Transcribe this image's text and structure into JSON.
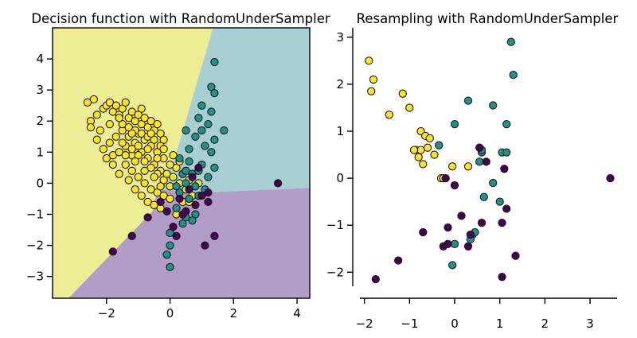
{
  "chart_data": [
    {
      "type": "scatter",
      "title": "Decision function with RandomUnderSampler",
      "xlabel": "",
      "ylabel": "",
      "xlim": [
        -3.7,
        4.4
      ],
      "ylim": [
        -3.7,
        5.0
      ],
      "x_ticks": [
        -2,
        0,
        2,
        4
      ],
      "x_tick_labels": [
        "−2",
        "0",
        "2",
        "4"
      ],
      "y_ticks": [
        -3,
        -2,
        -1,
        0,
        1,
        2,
        3,
        4
      ],
      "y_tick_labels": [
        "−3",
        "−2",
        "−1",
        "0",
        "1",
        "2",
        "3",
        "4"
      ],
      "grid": false,
      "frame": "full",
      "regions": [
        {
          "class": "yellow",
          "color": "#eded95",
          "polygon": [
            [
              -3.7,
              5.0
            ],
            [
              1.35,
              5.0
            ],
            [
              0.15,
              0.8
            ],
            [
              -0.4,
              -0.2
            ],
            [
              -0.55,
              -0.9
            ],
            [
              -3.2,
              -3.7
            ],
            [
              -3.7,
              -3.7
            ]
          ]
        },
        {
          "class": "teal",
          "color": "#a8cfd1",
          "polygon": [
            [
              1.35,
              5.0
            ],
            [
              4.4,
              5.0
            ],
            [
              4.4,
              -0.15
            ],
            [
              1.0,
              -0.3
            ],
            [
              -0.4,
              -0.2
            ],
            [
              0.15,
              0.8
            ]
          ]
        },
        {
          "class": "purple",
          "color": "#b19dc5",
          "polygon": [
            [
              -3.2,
              -3.7
            ],
            [
              4.4,
              -3.7
            ],
            [
              4.4,
              -0.15
            ],
            [
              1.0,
              -0.3
            ],
            [
              -0.4,
              -0.2
            ],
            [
              -0.55,
              -0.9
            ]
          ]
        }
      ],
      "series": [
        {
          "color": "#fde725",
          "points": [
            [
              -2.6,
              2.6
            ],
            [
              -2.4,
              2.7
            ],
            [
              -2.3,
              2.2
            ],
            [
              -2.5,
              2.0
            ],
            [
              -2.2,
              1.7
            ],
            [
              -2.1,
              2.4
            ],
            [
              -2.0,
              2.5
            ],
            [
              -1.9,
              2.6
            ],
            [
              -1.8,
              2.3
            ],
            [
              -1.7,
              2.5
            ],
            [
              -1.6,
              2.2
            ],
            [
              -1.5,
              2.4
            ],
            [
              -1.4,
              2.6
            ],
            [
              -1.3,
              2.1
            ],
            [
              -1.2,
              2.3
            ],
            [
              -1.1,
              2.0
            ],
            [
              -1.0,
              2.2
            ],
            [
              -0.9,
              1.9
            ],
            [
              -0.8,
              2.1
            ],
            [
              -0.7,
              1.8
            ],
            [
              -0.6,
              2.0
            ],
            [
              -0.5,
              1.7
            ],
            [
              -0.4,
              1.9
            ],
            [
              -0.3,
              1.6
            ],
            [
              -0.2,
              1.4
            ],
            [
              -2.3,
              1.4
            ],
            [
              -2.1,
              1.1
            ],
            [
              -1.9,
              1.3
            ],
            [
              -1.8,
              0.9
            ],
            [
              -1.7,
              1.5
            ],
            [
              -1.6,
              1.0
            ],
            [
              -1.5,
              1.7
            ],
            [
              -1.4,
              1.2
            ],
            [
              -1.3,
              1.5
            ],
            [
              -1.2,
              0.9
            ],
            [
              -1.1,
              1.3
            ],
            [
              -1.0,
              1.6
            ],
            [
              -0.9,
              1.0
            ],
            [
              -0.8,
              1.4
            ],
            [
              -0.7,
              0.8
            ],
            [
              -0.6,
              1.2
            ],
            [
              -0.5,
              0.6
            ],
            [
              -0.4,
              1.0
            ],
            [
              -0.3,
              0.4
            ],
            [
              -0.2,
              0.8
            ],
            [
              -0.1,
              0.3
            ],
            [
              0.0,
              0.6
            ],
            [
              0.1,
              0.2
            ],
            [
              0.2,
              0.5
            ],
            [
              0.3,
              0.0
            ],
            [
              0.4,
              0.3
            ],
            [
              0.5,
              -0.2
            ],
            [
              0.6,
              0.1
            ],
            [
              0.7,
              -0.4
            ],
            [
              0.8,
              -0.1
            ],
            [
              -1.6,
              0.3
            ],
            [
              -1.4,
              0.6
            ],
            [
              -1.3,
              0.1
            ],
            [
              -1.2,
              0.4
            ],
            [
              -1.1,
              -0.2
            ],
            [
              -1.0,
              0.2
            ],
            [
              -0.9,
              -0.4
            ],
            [
              -0.8,
              0.0
            ],
            [
              -0.7,
              -0.6
            ],
            [
              -0.6,
              -0.2
            ],
            [
              -0.5,
              -0.7
            ],
            [
              -0.4,
              -0.3
            ],
            [
              -0.3,
              -0.8
            ],
            [
              -0.2,
              -0.4
            ],
            [
              -0.1,
              -0.9
            ],
            [
              0.0,
              -0.5
            ],
            [
              0.2,
              -1.0
            ],
            [
              0.4,
              -0.6
            ],
            [
              -1.5,
              1.9
            ],
            [
              -1.3,
              1.8
            ],
            [
              -1.1,
              1.7
            ],
            [
              -0.9,
              1.6
            ],
            [
              -0.7,
              1.5
            ],
            [
              -0.5,
              1.4
            ],
            [
              -0.3,
              1.2
            ],
            [
              -1.2,
              1.1
            ],
            [
              -1.0,
              0.9
            ],
            [
              -0.8,
              0.7
            ],
            [
              -0.6,
              0.5
            ],
            [
              -0.4,
              0.3
            ],
            [
              -0.2,
              0.1
            ],
            [
              0.0,
              -0.1
            ],
            [
              -2.5,
              1.8
            ],
            [
              -2.0,
              0.8
            ],
            [
              -1.8,
              0.6
            ],
            [
              -0.9,
              2.4
            ],
            [
              -0.6,
              1.6
            ],
            [
              -0.2,
              1.1
            ],
            [
              0.1,
              0.9
            ],
            [
              0.3,
              0.7
            ],
            [
              0.5,
              0.4
            ],
            [
              0.7,
              0.2
            ],
            [
              0.9,
              0.0
            ],
            [
              0.6,
              -0.6
            ],
            [
              -1.9,
              1.9
            ],
            [
              -1.5,
              1.3
            ],
            [
              -1.0,
              1.2
            ],
            [
              -0.7,
              1.1
            ],
            [
              -0.4,
              0.8
            ],
            [
              -1.4,
              0.9
            ],
            [
              -1.1,
              0.7
            ],
            [
              -0.8,
              0.4
            ],
            [
              -0.5,
              0.2
            ],
            [
              -0.3,
              -0.1
            ],
            [
              -1.6,
              2.1
            ],
            [
              -1.2,
              1.6
            ]
          ]
        },
        {
          "color": "#21918c",
          "points": [
            [
              1.4,
              3.9
            ],
            [
              1.3,
              3.1
            ],
            [
              1.4,
              2.9
            ],
            [
              1.3,
              2.3
            ],
            [
              1.0,
              2.5
            ],
            [
              0.9,
              2.1
            ],
            [
              1.2,
              1.9
            ],
            [
              1.7,
              1.7
            ],
            [
              0.5,
              1.7
            ],
            [
              0.8,
              1.5
            ],
            [
              0.6,
              1.1
            ],
            [
              1.1,
              1.2
            ],
            [
              1.3,
              1.0
            ],
            [
              0.3,
              0.8
            ],
            [
              0.6,
              0.7
            ],
            [
              1.0,
              0.6
            ],
            [
              1.4,
              0.5
            ],
            [
              0.4,
              0.3
            ],
            [
              0.7,
              0.3
            ],
            [
              0.9,
              0.4
            ],
            [
              1.2,
              0.2
            ],
            [
              0.5,
              0.0
            ],
            [
              0.8,
              -0.1
            ],
            [
              1.1,
              -0.2
            ],
            [
              0.3,
              -0.3
            ],
            [
              0.6,
              -0.5
            ],
            [
              0.9,
              -0.4
            ],
            [
              0.2,
              -0.8
            ],
            [
              0.5,
              -1.1
            ],
            [
              0.8,
              -1.0
            ],
            [
              0.0,
              -1.6
            ],
            [
              -0.1,
              -2.3
            ],
            [
              0.0,
              -2.7
            ],
            [
              0.0,
              -2.0
            ],
            [
              0.4,
              -1.3
            ],
            [
              0.7,
              -1.2
            ],
            [
              0.2,
              -0.1
            ],
            [
              0.5,
              0.4
            ],
            [
              1.0,
              1.7
            ],
            [
              1.4,
              1.4
            ]
          ]
        },
        {
          "color": "#440154",
          "points": [
            [
              3.4,
              0.0
            ],
            [
              -1.8,
              -2.2
            ],
            [
              -1.2,
              -1.7
            ],
            [
              -0.7,
              -1.1
            ],
            [
              1.1,
              -2.0
            ],
            [
              1.4,
              -1.7
            ],
            [
              1.2,
              -0.6
            ],
            [
              -0.1,
              -0.9
            ],
            [
              0.1,
              -1.4
            ],
            [
              0.3,
              -0.5
            ],
            [
              0.6,
              -0.2
            ],
            [
              0.8,
              -0.7
            ],
            [
              1.0,
              -0.4
            ],
            [
              -0.3,
              -0.6
            ],
            [
              0.4,
              -1.0
            ],
            [
              0.9,
              0.5
            ],
            [
              0.2,
              -1.7
            ],
            [
              0.5,
              -0.9
            ],
            [
              1.2,
              -0.3
            ],
            [
              0.7,
              0.2
            ]
          ]
        }
      ]
    },
    {
      "type": "scatter",
      "title": "Resampling with RandomUnderSampler",
      "xlabel": "",
      "ylabel": "",
      "xlim": [
        -2.1,
        3.6
      ],
      "ylim": [
        -2.3,
        3.2
      ],
      "x_ticks": [
        -2,
        -1,
        0,
        1,
        2,
        3
      ],
      "x_tick_labels": [
        "−2",
        "−1",
        "0",
        "1",
        "2",
        "3"
      ],
      "y_ticks": [
        -2,
        -1,
        0,
        1,
        2,
        3
      ],
      "y_tick_labels": [
        "−2",
        "−1",
        "0",
        "1",
        "2",
        "3"
      ],
      "grid": false,
      "frame": "left-bottom",
      "series": [
        {
          "color": "#fde725",
          "points": [
            [
              -1.9,
              2.5
            ],
            [
              -1.8,
              2.1
            ],
            [
              -1.85,
              1.85
            ],
            [
              -1.15,
              1.8
            ],
            [
              -1.45,
              1.35
            ],
            [
              -1.0,
              1.5
            ],
            [
              -0.75,
              1.0
            ],
            [
              -0.65,
              0.9
            ],
            [
              -0.55,
              0.85
            ],
            [
              -0.85,
              0.6
            ],
            [
              -0.8,
              0.45
            ],
            [
              -0.7,
              0.3
            ],
            [
              -0.45,
              0.5
            ],
            [
              -0.3,
              0.0
            ],
            [
              -0.05,
              0.25
            ],
            [
              0.3,
              0.25
            ],
            [
              -0.75,
              0.6
            ],
            [
              -0.25,
              0.0
            ],
            [
              -0.9,
              0.6
            ],
            [
              -0.6,
              0.65
            ]
          ]
        },
        {
          "color": "#21918c",
          "points": [
            [
              1.25,
              2.9
            ],
            [
              1.3,
              2.2
            ],
            [
              0.3,
              1.65
            ],
            [
              0.85,
              1.55
            ],
            [
              1.15,
              1.15
            ],
            [
              0.0,
              1.15
            ],
            [
              -0.35,
              0.7
            ],
            [
              0.6,
              0.55
            ],
            [
              1.05,
              0.55
            ],
            [
              1.15,
              0.55
            ],
            [
              0.55,
              0.35
            ],
            [
              0.85,
              -0.1
            ],
            [
              0.65,
              -0.4
            ],
            [
              0.4,
              -1.2
            ],
            [
              0.35,
              -1.3
            ],
            [
              0.0,
              -1.4
            ],
            [
              -0.05,
              -1.85
            ],
            [
              0.45,
              -1.15
            ],
            [
              1.0,
              -0.5
            ],
            [
              0.6,
              0.6
            ]
          ]
        },
        {
          "color": "#440154",
          "points": [
            [
              3.45,
              0.0
            ],
            [
              -1.75,
              -2.15
            ],
            [
              -1.25,
              -1.75
            ],
            [
              -0.7,
              -1.15
            ],
            [
              1.05,
              -2.1
            ],
            [
              1.35,
              -1.65
            ],
            [
              1.15,
              -0.65
            ],
            [
              0.0,
              -0.15
            ],
            [
              -0.2,
              0.0
            ],
            [
              0.6,
              -0.95
            ],
            [
              1.05,
              -0.95
            ],
            [
              0.15,
              -0.8
            ],
            [
              -0.15,
              -1.05
            ],
            [
              0.3,
              -1.45
            ],
            [
              -0.25,
              -1.45
            ],
            [
              0.55,
              0.65
            ],
            [
              1.1,
              0.2
            ],
            [
              -0.15,
              -1.4
            ],
            [
              0.35,
              -1.2
            ],
            [
              0.7,
              0.35
            ]
          ]
        }
      ]
    }
  ]
}
